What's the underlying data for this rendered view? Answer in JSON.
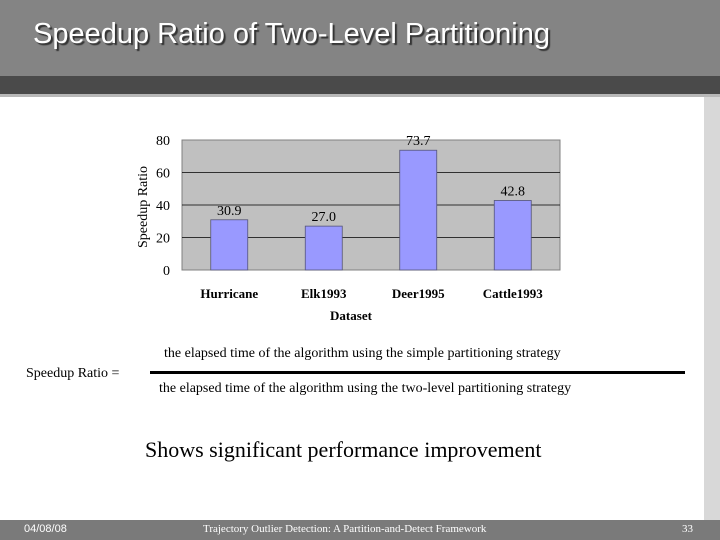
{
  "slide": {
    "title": "Speedup Ratio of Two-Level Partitioning"
  },
  "chart_data": {
    "type": "bar",
    "categories": [
      "Hurricane",
      "Elk1993",
      "Deer1995",
      "Cattle1993"
    ],
    "values": [
      30.9,
      27.0,
      73.7,
      42.8
    ],
    "value_labels": [
      "30.9",
      "27.0",
      "73.7",
      "42.8"
    ],
    "xlabel": "Dataset",
    "ylabel": "Speedup Ratio",
    "ylim": [
      0,
      80
    ],
    "yticks": [
      "0",
      "20",
      "40",
      "60",
      "80"
    ],
    "grid": true,
    "legend": "none",
    "bar_color": "#9999ff",
    "plot_background": "#c0c0c0"
  },
  "formula": {
    "label": "Speedup Ratio =",
    "numerator": "the elapsed time of the algorithm using the simple partitioning strategy",
    "denominator": "the elapsed time of the algorithm using the two-level partitioning strategy"
  },
  "conclusion": "Shows significant performance improvement",
  "footer": {
    "date": "04/08/08",
    "center": "Trajectory Outlier Detection: A Partition-and-Detect Framework",
    "page": "33"
  }
}
